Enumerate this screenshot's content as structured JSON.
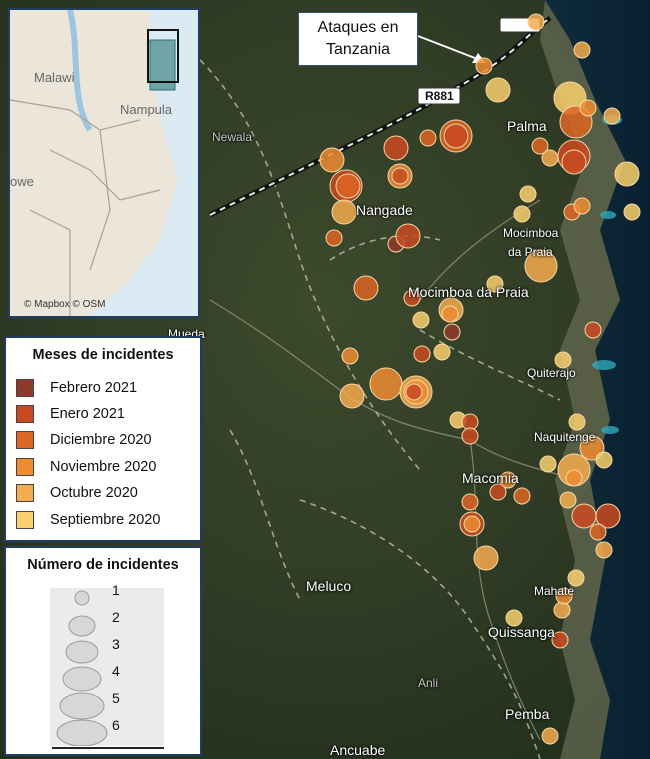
{
  "callout": {
    "line1": "Ataques en",
    "line2": "Tanzania"
  },
  "road_label": "R881",
  "places": {
    "palma": "Palma",
    "nangade": "Nangade",
    "mocimboa_bay": "Mocimboa",
    "mocimboa_bay2": "da Praia",
    "mocimboa": "Mocimboa da Praia",
    "newala": "Newala",
    "mueda": "Mueda",
    "quiterajo": "Quiterajo",
    "naquitenge": "Naquitenge",
    "macomia": "Macomia",
    "meluco": "Meluco",
    "mahate": "Mahate",
    "quissanga": "Quissanga",
    "ancuabe": "Ancuabe",
    "pemba": "Pemba",
    "anli": "Anli"
  },
  "inset": {
    "labels": {
      "malawi": "Malawi",
      "nampula": "Nampula",
      "zambia_fragment": "owe"
    },
    "credit": "© Mapbox © OSM"
  },
  "legend_months": {
    "title": "Meses de incidentes",
    "items": [
      {
        "label": "Febrero 2021",
        "color": "#8e3a2a"
      },
      {
        "label": "Enero 2021",
        "color": "#c94a22"
      },
      {
        "label": "Diciembre 2020",
        "color": "#dd6525"
      },
      {
        "label": "Noviembre 2020",
        "color": "#ed8c33"
      },
      {
        "label": "Octubre 2020",
        "color": "#f4ac4f"
      },
      {
        "label": "Septiembre 2020",
        "color": "#f9d06e"
      }
    ]
  },
  "legend_count": {
    "title": "Número de incidentes",
    "items": [
      "1",
      "2",
      "3",
      "4",
      "5",
      "6"
    ]
  }
}
